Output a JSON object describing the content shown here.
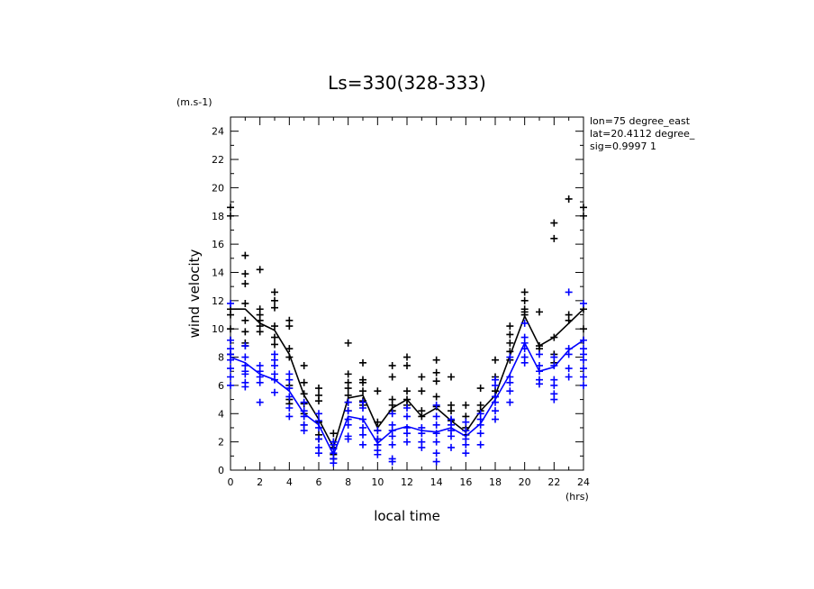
{
  "chart_data": {
    "type": "line",
    "title": "Ls=330(328-333)",
    "xlabel": "local time",
    "ylabel": "wind velocity",
    "x_unit": "(hrs)",
    "y_unit": "(m.s-1)",
    "info": [
      "lon=75 degree_east",
      "lat=20.4112 degree_",
      "sig=0.9997 1"
    ],
    "xlim": [
      0,
      24
    ],
    "ylim": [
      0,
      25
    ],
    "x_ticks": [
      "0",
      "2",
      "4",
      "6",
      "8",
      "10",
      "12",
      "14",
      "16",
      "18",
      "20",
      "22",
      "24"
    ],
    "y_ticks": [
      "0",
      "2",
      "4",
      "6",
      "8",
      "10",
      "12",
      "14",
      "16",
      "18",
      "20",
      "22",
      "24"
    ],
    "grid": false,
    "x": [
      0,
      1,
      2,
      3,
      4,
      5,
      6,
      7,
      8,
      9,
      10,
      11,
      12,
      13,
      14,
      15,
      16,
      17,
      18,
      19,
      20,
      21,
      22,
      23,
      24
    ],
    "series": [
      {
        "color": "#000000",
        "style": "line+markers",
        "values": [
          11.4,
          11.4,
          10.4,
          9.9,
          8.2,
          5.3,
          3.6,
          1.6,
          5.1,
          5.3,
          3.0,
          4.4,
          5.0,
          3.8,
          4.4,
          3.5,
          2.7,
          4.2,
          5.3,
          8.1,
          10.9,
          8.8,
          9.4,
          10.4,
          11.4
        ],
        "markers": [
          [
            11.4,
            18.6,
            18.0,
            11.0,
            10.0,
            9.2,
            8.2
          ],
          [
            15.2,
            13.9,
            13.2,
            11.8,
            10.6,
            9.8,
            9.0,
            8.8
          ],
          [
            14.2,
            11.4,
            11.0,
            10.6,
            10.2,
            9.8
          ],
          [
            12.6,
            12.0,
            11.5,
            10.2,
            9.4,
            8.9
          ],
          [
            10.6,
            10.2,
            8.6,
            8.0,
            6.0,
            5.0,
            4.7
          ],
          [
            7.4,
            6.2,
            5.4,
            4.7,
            4.0,
            3.2
          ],
          [
            5.8,
            5.3,
            4.9,
            3.4,
            2.5,
            2.2
          ],
          [
            2.6,
            2.0,
            1.6,
            1.1,
            0.8
          ],
          [
            9.0,
            6.8,
            6.2,
            5.8,
            5.3,
            4.8,
            4.2
          ],
          [
            7.6,
            6.4,
            6.2,
            5.6,
            4.9,
            4.6
          ],
          [
            5.6,
            3.4,
            2.8,
            2.2,
            1.8
          ],
          [
            7.4,
            6.6,
            5.0,
            4.6,
            4.2
          ],
          [
            8.0,
            7.4,
            5.6,
            5.0,
            4.6
          ],
          [
            6.6,
            5.6,
            4.2,
            3.8
          ],
          [
            7.8,
            6.9,
            6.3,
            5.2,
            4.5
          ],
          [
            6.6,
            4.6,
            4.2,
            3.5
          ],
          [
            4.6,
            3.8,
            3.0,
            2.5
          ],
          [
            5.8,
            4.6,
            4.2
          ],
          [
            7.8,
            6.6,
            5.6,
            5.2
          ],
          [
            10.2,
            9.6,
            9.0,
            8.4,
            7.8
          ],
          [
            12.6,
            12.0,
            11.4,
            11.2,
            11.0
          ],
          [
            11.2,
            8.8,
            8.6
          ],
          [
            17.5,
            16.4,
            9.4,
            8.2,
            7.6
          ],
          [
            19.2,
            11.0,
            10.6
          ],
          [
            18.6,
            18.0,
            11.4,
            10.0,
            9.2
          ]
        ]
      },
      {
        "color": "#0000ff",
        "style": "line+markers",
        "values": [
          8.0,
          7.6,
          6.8,
          6.4,
          5.6,
          4.0,
          3.2,
          1.1,
          3.8,
          3.6,
          1.9,
          2.8,
          3.1,
          2.8,
          2.7,
          3.0,
          2.4,
          3.3,
          5.0,
          6.8,
          9.0,
          7.0,
          7.3,
          8.5,
          9.2
        ],
        "markers": [
          [
            11.8,
            9.2,
            8.6,
            8.2,
            7.8,
            7.2,
            6.6,
            6.0
          ],
          [
            8.8,
            8.0,
            7.4,
            7.0,
            6.8,
            6.2,
            5.9
          ],
          [
            7.4,
            7.0,
            6.6,
            6.2,
            4.8
          ],
          [
            8.2,
            7.8,
            7.4,
            6.8,
            6.4,
            5.5
          ],
          [
            6.8,
            6.4,
            5.8,
            5.2,
            4.4,
            3.8
          ],
          [
            4.8,
            4.2,
            3.8,
            3.2,
            2.8
          ],
          [
            4.0,
            3.5,
            3.0,
            2.2,
            1.6,
            1.2
          ],
          [
            2.0,
            1.8,
            1.5,
            1.2,
            0.8,
            0.5
          ],
          [
            4.8,
            4.2,
            3.6,
            3.2,
            2.4,
            2.2
          ],
          [
            4.8,
            4.4,
            3.6,
            3.0,
            2.5,
            1.8
          ],
          [
            2.8,
            2.2,
            1.8,
            1.4,
            1.1
          ],
          [
            4.0,
            3.2,
            2.8,
            2.4,
            1.8,
            0.8,
            0.6
          ],
          [
            4.4,
            3.8,
            3.0,
            2.6,
            2.0
          ],
          [
            3.0,
            2.6,
            2.0,
            1.6
          ],
          [
            4.6,
            3.8,
            3.2,
            2.6,
            2.0,
            1.2,
            0.6
          ],
          [
            3.6,
            3.2,
            2.8,
            2.4,
            1.6
          ],
          [
            3.4,
            2.8,
            2.2,
            1.8,
            1.2
          ],
          [
            4.0,
            3.6,
            3.2,
            2.6,
            1.8
          ],
          [
            6.4,
            6.0,
            5.2,
            4.8,
            4.2,
            3.6
          ],
          [
            8.0,
            6.6,
            6.2,
            5.6,
            4.8
          ],
          [
            10.4,
            9.4,
            9.0,
            8.6,
            8.0,
            7.6
          ],
          [
            8.2,
            7.4,
            7.0,
            6.4,
            6.1
          ],
          [
            8.0,
            7.4,
            6.4,
            6.0,
            5.4,
            5.0
          ],
          [
            12.6,
            8.6,
            8.2,
            7.2,
            6.6
          ],
          [
            11.8,
            9.2,
            8.6,
            8.2,
            7.8,
            7.2,
            6.6,
            6.0
          ]
        ]
      }
    ]
  }
}
